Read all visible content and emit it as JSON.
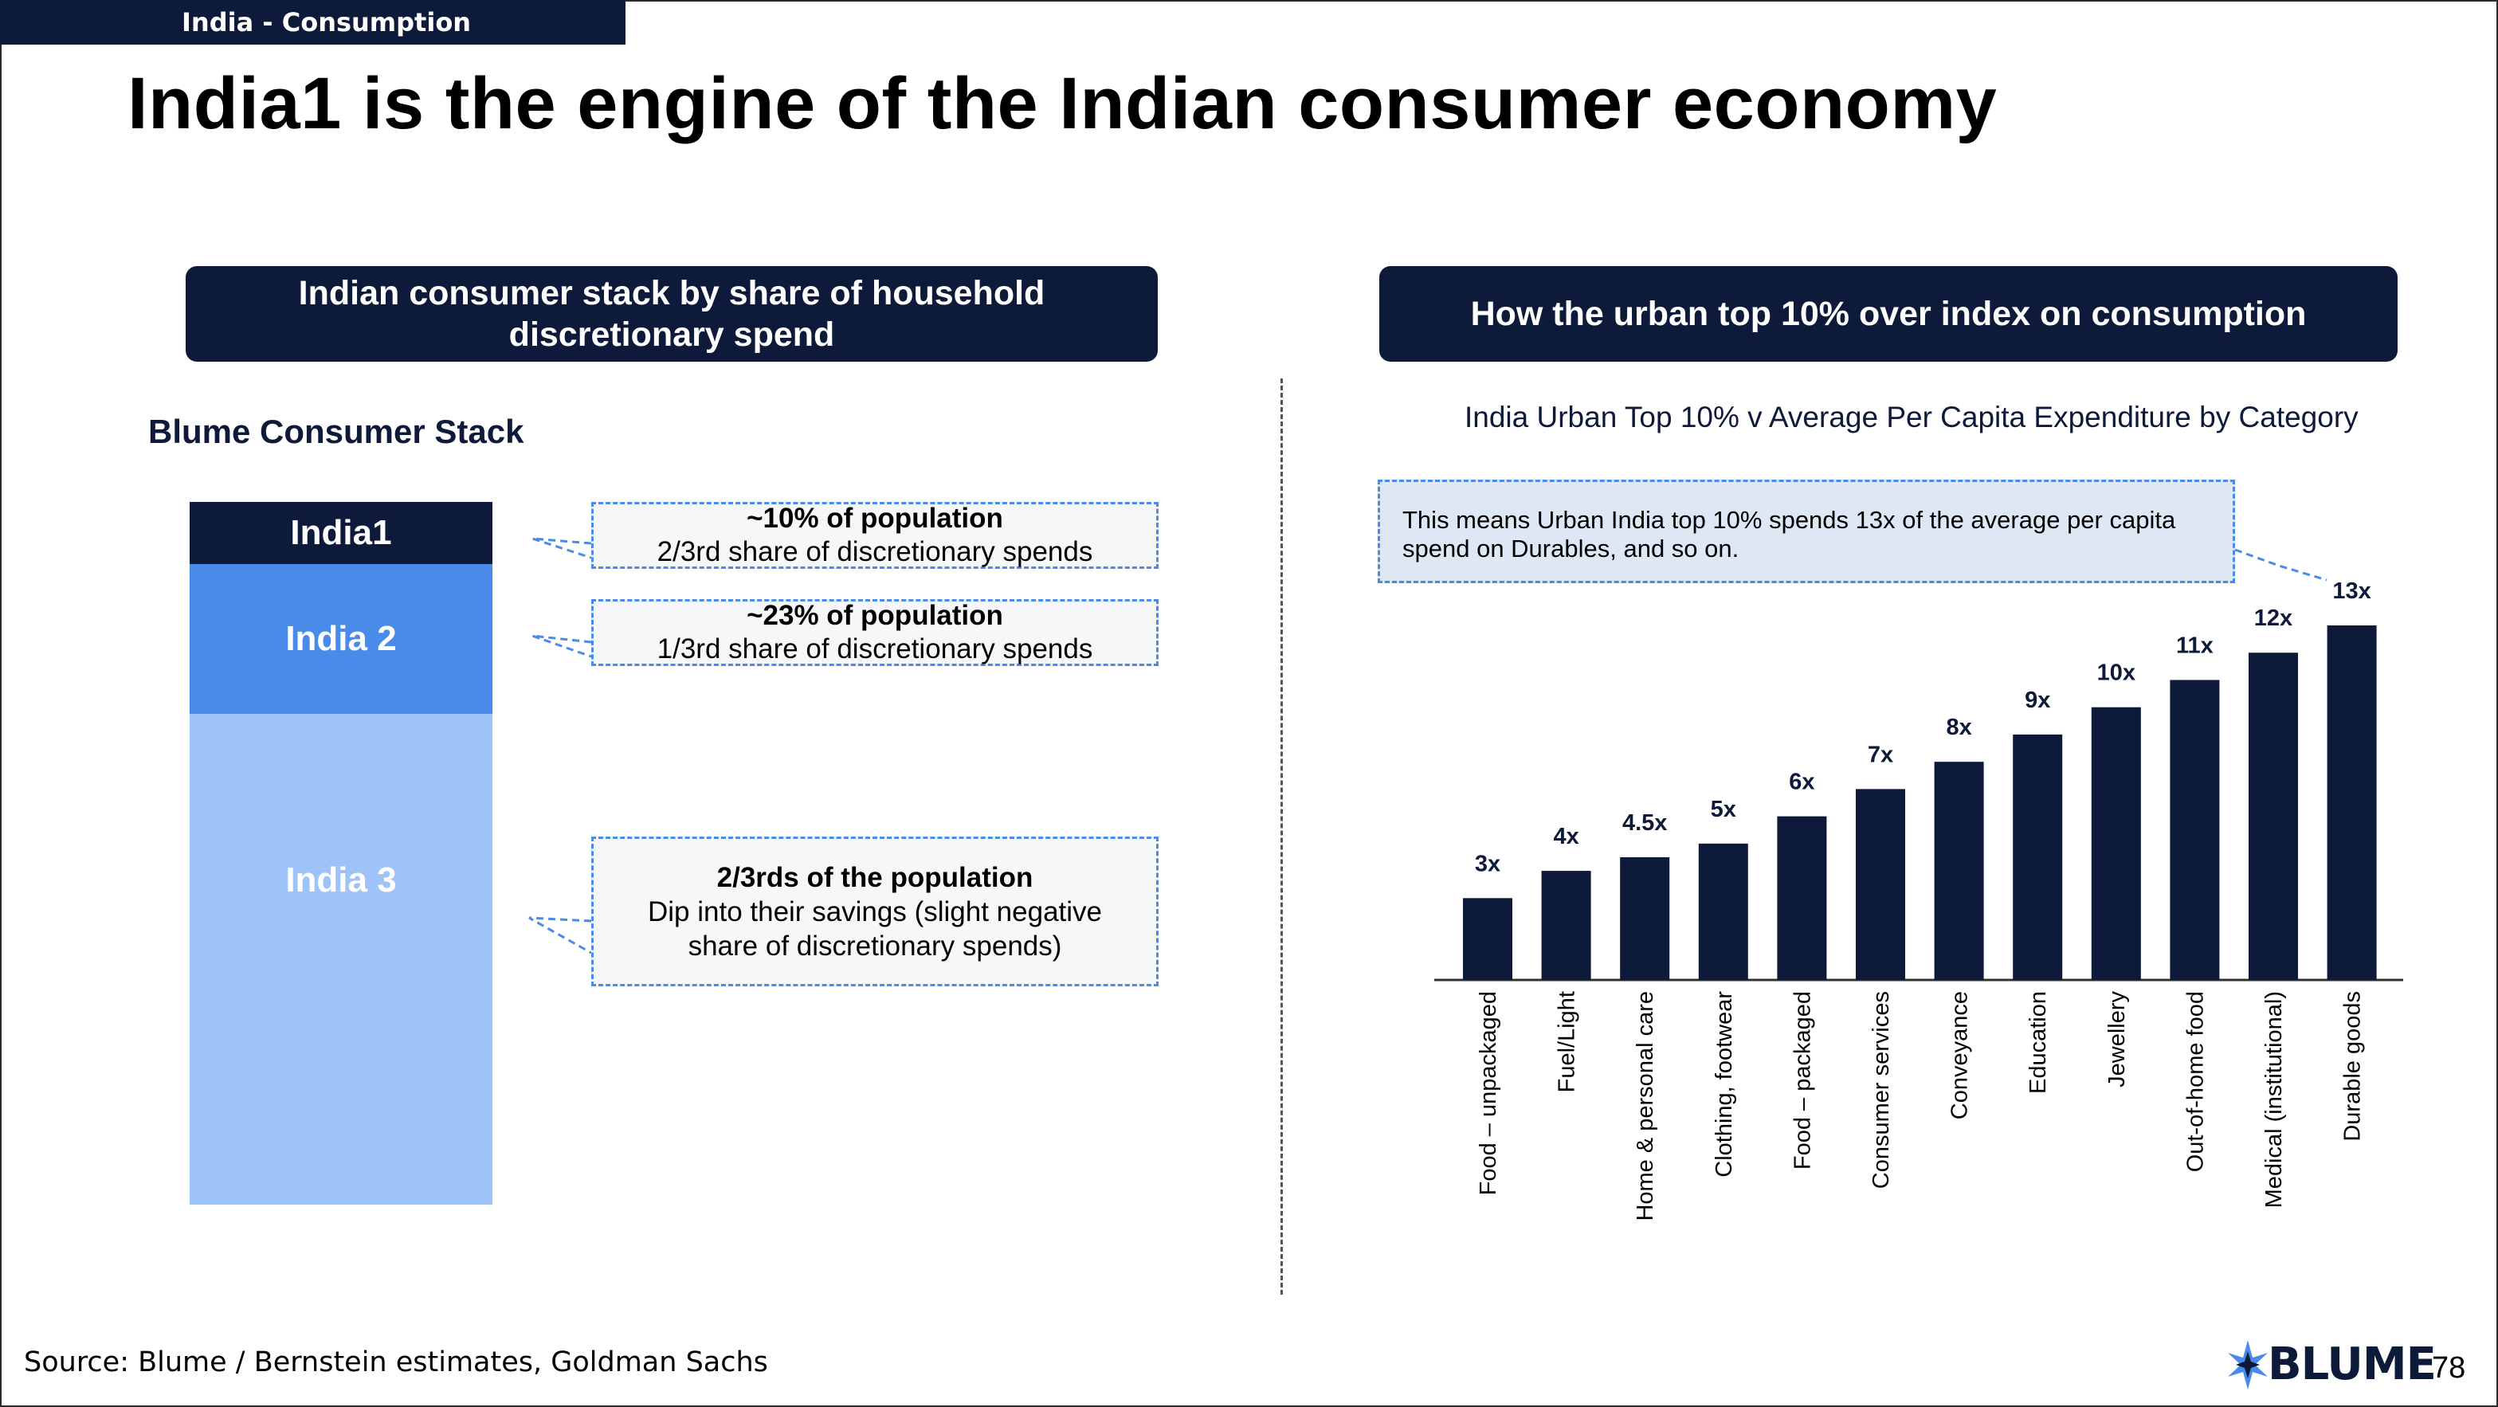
{
  "header": {
    "section_tag": "India - Consumption",
    "title": "India1 is the engine of the Indian consumer economy"
  },
  "left_panel": {
    "pill_title": "Indian consumer stack by share of household discretionary spend",
    "stack_title": "Blume Consumer Stack",
    "blocks": [
      "India1",
      "India 2",
      "India 3"
    ],
    "callouts": [
      {
        "heading": "~10% of population",
        "text": "2/3rd share of discretionary spends"
      },
      {
        "heading": "~23% of population",
        "text": "1/3rd share of discretionary spends"
      },
      {
        "heading": "2/3rds of the population",
        "text": "Dip into their savings (slight negative share of discretionary spends)"
      }
    ],
    "colors": {
      "india1": "#0d1a3a",
      "india2": "#4a8ae8",
      "india3": "#9ec3f8"
    }
  },
  "right_panel": {
    "pill_title": "How the urban top 10% over index on consumption",
    "note": "This means Urban India top 10% spends 13x of the average per capita spend  on Durables, and so on."
  },
  "chart_data": {
    "type": "bar",
    "title": "India Urban Top 10% v Average Per Capita Expenditure by Category",
    "categories": [
      "Food – unpackaged",
      "Fuel/Light",
      "Home & personal care",
      "Clothing, footwear",
      "Food – packaged",
      "Consumer services",
      "Conveyance",
      "Education",
      "Jewellery",
      "Out-of-home food",
      "Medical (institutional)",
      "Durable goods"
    ],
    "values": [
      3,
      4,
      4.5,
      5,
      6,
      7,
      8,
      9,
      10,
      11,
      12,
      13
    ],
    "data_labels": [
      "3x",
      "4x",
      "4.5x",
      "5x",
      "6x",
      "7x",
      "8x",
      "9x",
      "10x",
      "11x",
      "12x",
      "13x"
    ],
    "xlabel": "",
    "ylabel": "",
    "bar_color": "#0d1a3a",
    "grid": false
  },
  "footer": {
    "source": "Source: Blume / Bernstein estimates, Goldman Sachs",
    "logo": "BLUME",
    "page_number": "78"
  }
}
